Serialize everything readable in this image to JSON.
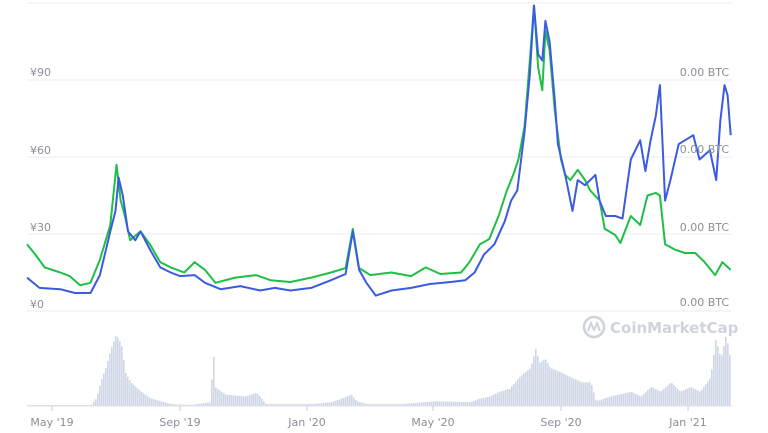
{
  "chart_data": {
    "type": "line",
    "title": "",
    "xlabel": "",
    "ylabel": "",
    "grid": true,
    "legend": "none",
    "watermark": "CoinMarketCap",
    "colors": {
      "price_line": "#3b5be0",
      "btc_line": "#1fbf46",
      "volume": "#cfd6e6",
      "grid": "#eceef2",
      "label": "#8a8f99"
    },
    "y_left": {
      "ylim": [
        0,
        121
      ],
      "ticks": [
        0,
        30,
        60,
        90,
        120
      ],
      "tick_labels": [
        "¥0",
        "¥30",
        "¥60",
        "¥90",
        ""
      ]
    },
    "y_right": {
      "ylim": [
        0,
        121
      ],
      "ticks": [
        0,
        30,
        60,
        90
      ],
      "tick_labels": [
        "0.00 BTC",
        "0.00 BTC",
        "0.00 BTC",
        "0.00 BTC"
      ]
    },
    "x_axis": {
      "range": [
        "2019-04-07",
        "2021-02-11"
      ],
      "ticks": [
        "2019-05-01",
        "2019-09-01",
        "2020-01-01",
        "2020-05-01",
        "2020-09-01",
        "2021-01-01"
      ],
      "tick_labels": [
        "May '19",
        "Sep '19",
        "Jan '20",
        "May '20",
        "Sep '20",
        "Jan '21"
      ]
    },
    "series": [
      {
        "axis": "left",
        "color": "#3b5be0",
        "points": [
          [
            "2019-04-07",
            13
          ],
          [
            "2019-04-19",
            9
          ],
          [
            "2019-05-09",
            8.5
          ],
          [
            "2019-05-23",
            7
          ],
          [
            "2019-06-07",
            7
          ],
          [
            "2019-06-16",
            14
          ],
          [
            "2019-06-26",
            31
          ],
          [
            "2019-07-01",
            39
          ],
          [
            "2019-07-04",
            52
          ],
          [
            "2019-07-08",
            45
          ],
          [
            "2019-07-13",
            31
          ],
          [
            "2019-07-20",
            27.6
          ],
          [
            "2019-07-25",
            31
          ],
          [
            "2019-08-03",
            24
          ],
          [
            "2019-08-13",
            17
          ],
          [
            "2019-08-23",
            15
          ],
          [
            "2019-09-01",
            13.6
          ],
          [
            "2019-09-15",
            14
          ],
          [
            "2019-09-25",
            11
          ],
          [
            "2019-10-10",
            8.5
          ],
          [
            "2019-10-29",
            9.7
          ],
          [
            "2019-11-17",
            8
          ],
          [
            "2019-12-01",
            9
          ],
          [
            "2019-12-16",
            8
          ],
          [
            "2020-01-05",
            9
          ],
          [
            "2020-01-24",
            12
          ],
          [
            "2020-02-07",
            14.4
          ],
          [
            "2020-02-14",
            31
          ],
          [
            "2020-02-20",
            16
          ],
          [
            "2020-02-27",
            11
          ],
          [
            "2020-03-07",
            6
          ],
          [
            "2020-03-22",
            8
          ],
          [
            "2020-04-10",
            9
          ],
          [
            "2020-04-28",
            10.5
          ],
          [
            "2020-05-18",
            11.3
          ],
          [
            "2020-06-01",
            12
          ],
          [
            "2020-06-10",
            15
          ],
          [
            "2020-06-19",
            22
          ],
          [
            "2020-06-29",
            26
          ],
          [
            "2020-07-09",
            35
          ],
          [
            "2020-07-15",
            43
          ],
          [
            "2020-07-21",
            47
          ],
          [
            "2020-07-28",
            70
          ],
          [
            "2020-08-02",
            92
          ],
          [
            "2020-08-06",
            119
          ],
          [
            "2020-08-10",
            100
          ],
          [
            "2020-08-14",
            97.6
          ],
          [
            "2020-08-17",
            113
          ],
          [
            "2020-08-21",
            105
          ],
          [
            "2020-08-26",
            82
          ],
          [
            "2020-08-29",
            65
          ],
          [
            "2020-09-05",
            53
          ],
          [
            "2020-09-12",
            39
          ],
          [
            "2020-09-17",
            51
          ],
          [
            "2020-09-24",
            49
          ],
          [
            "2020-10-04",
            53
          ],
          [
            "2020-10-08",
            43
          ],
          [
            "2020-10-14",
            37
          ],
          [
            "2020-10-23",
            37
          ],
          [
            "2020-10-30",
            36
          ],
          [
            "2020-11-07",
            59
          ],
          [
            "2020-11-16",
            66.5
          ],
          [
            "2020-11-21",
            54.5
          ],
          [
            "2020-11-26",
            66.5
          ],
          [
            "2020-12-01",
            76
          ],
          [
            "2020-12-05",
            88
          ],
          [
            "2020-12-10",
            43
          ],
          [
            "2020-12-15",
            51
          ],
          [
            "2020-12-23",
            65
          ],
          [
            "2020-12-29",
            66.5
          ],
          [
            "2021-01-06",
            68.5
          ],
          [
            "2021-01-12",
            59
          ],
          [
            "2021-01-22",
            62.6
          ],
          [
            "2021-01-28",
            51
          ],
          [
            "2021-02-01",
            74
          ],
          [
            "2021-02-05",
            88
          ],
          [
            "2021-02-08",
            84
          ],
          [
            "2021-02-11",
            68.5
          ]
        ]
      },
      {
        "axis": "right",
        "color": "#1fbf46",
        "points": [
          [
            "2019-04-07",
            26
          ],
          [
            "2019-04-15",
            22
          ],
          [
            "2019-04-24",
            17
          ],
          [
            "2019-05-09",
            15
          ],
          [
            "2019-05-18",
            13.6
          ],
          [
            "2019-05-28",
            10
          ],
          [
            "2019-06-07",
            11
          ],
          [
            "2019-06-16",
            20
          ],
          [
            "2019-06-26",
            33.5
          ],
          [
            "2019-07-02",
            57
          ],
          [
            "2019-07-06",
            43
          ],
          [
            "2019-07-10",
            37
          ],
          [
            "2019-07-15",
            27.6
          ],
          [
            "2019-07-25",
            31
          ],
          [
            "2019-08-03",
            26
          ],
          [
            "2019-08-13",
            19
          ],
          [
            "2019-08-23",
            17
          ],
          [
            "2019-09-05",
            15
          ],
          [
            "2019-09-15",
            19
          ],
          [
            "2019-09-25",
            16
          ],
          [
            "2019-10-05",
            11
          ],
          [
            "2019-10-24",
            13
          ],
          [
            "2019-11-13",
            14
          ],
          [
            "2019-11-27",
            12
          ],
          [
            "2019-12-16",
            11.3
          ],
          [
            "2020-01-05",
            13
          ],
          [
            "2020-01-24",
            15
          ],
          [
            "2020-02-07",
            16.7
          ],
          [
            "2020-02-14",
            32
          ],
          [
            "2020-02-20",
            16.7
          ],
          [
            "2020-03-02",
            14
          ],
          [
            "2020-03-22",
            15
          ],
          [
            "2020-04-10",
            13.6
          ],
          [
            "2020-04-24",
            17
          ],
          [
            "2020-05-08",
            14.4
          ],
          [
            "2020-05-28",
            15
          ],
          [
            "2020-06-05",
            19
          ],
          [
            "2020-06-15",
            26
          ],
          [
            "2020-06-24",
            28
          ],
          [
            "2020-07-03",
            37
          ],
          [
            "2020-07-11",
            47
          ],
          [
            "2020-07-17",
            53
          ],
          [
            "2020-07-22",
            59
          ],
          [
            "2020-07-28",
            72
          ],
          [
            "2020-08-02",
            97.6
          ],
          [
            "2020-08-06",
            119
          ],
          [
            "2020-08-10",
            95
          ],
          [
            "2020-08-14",
            86
          ],
          [
            "2020-08-17",
            109
          ],
          [
            "2020-08-21",
            101.6
          ],
          [
            "2020-08-26",
            78
          ],
          [
            "2020-09-01",
            59
          ],
          [
            "2020-09-05",
            53
          ],
          [
            "2020-09-10",
            51
          ],
          [
            "2020-09-17",
            55
          ],
          [
            "2020-09-24",
            51
          ],
          [
            "2020-09-29",
            47
          ],
          [
            "2020-10-08",
            43
          ],
          [
            "2020-10-13",
            32
          ],
          [
            "2020-10-23",
            29.6
          ],
          [
            "2020-10-28",
            26.5
          ],
          [
            "2020-11-07",
            37
          ],
          [
            "2020-11-16",
            33.5
          ],
          [
            "2020-11-23",
            45
          ],
          [
            "2020-12-01",
            46
          ],
          [
            "2020-12-05",
            45
          ],
          [
            "2020-12-10",
            26
          ],
          [
            "2020-12-19",
            24
          ],
          [
            "2020-12-29",
            22.6
          ],
          [
            "2021-01-08",
            22.6
          ],
          [
            "2021-01-17",
            19
          ],
          [
            "2021-01-27",
            14
          ],
          [
            "2021-02-03",
            19
          ],
          [
            "2021-02-11",
            16
          ]
        ]
      }
    ],
    "volume": {
      "type": "bar",
      "relative": true,
      "points": [
        [
          "2019-04-07",
          1
        ],
        [
          "2019-06-07",
          1
        ],
        [
          "2019-06-12",
          8
        ],
        [
          "2019-06-16",
          25
        ],
        [
          "2019-06-21",
          40
        ],
        [
          "2019-06-26",
          60
        ],
        [
          "2019-07-01",
          75
        ],
        [
          "2019-07-06",
          65
        ],
        [
          "2019-07-10",
          35
        ],
        [
          "2019-07-15",
          25
        ],
        [
          "2019-07-25",
          15
        ],
        [
          "2019-08-03",
          8
        ],
        [
          "2019-08-13",
          5
        ],
        [
          "2019-08-23",
          2
        ],
        [
          "2019-09-10",
          1
        ],
        [
          "2019-09-30",
          4
        ],
        [
          "2019-10-02",
          68
        ],
        [
          "2019-10-04",
          20
        ],
        [
          "2019-10-14",
          12
        ],
        [
          "2019-11-02",
          10
        ],
        [
          "2019-11-13",
          14
        ],
        [
          "2019-11-22",
          2
        ],
        [
          "2019-12-16",
          2
        ],
        [
          "2020-01-05",
          2
        ],
        [
          "2020-01-24",
          4
        ],
        [
          "2020-02-03",
          8
        ],
        [
          "2020-02-12",
          12
        ],
        [
          "2020-02-17",
          5
        ],
        [
          "2020-02-27",
          2
        ],
        [
          "2020-03-31",
          2
        ],
        [
          "2020-05-03",
          5
        ],
        [
          "2020-06-05",
          4
        ],
        [
          "2020-06-15",
          8
        ],
        [
          "2020-06-24",
          10
        ],
        [
          "2020-07-03",
          15
        ],
        [
          "2020-07-13",
          18
        ],
        [
          "2020-07-22",
          30
        ],
        [
          "2020-08-02",
          40
        ],
        [
          "2020-08-07",
          60
        ],
        [
          "2020-08-11",
          45
        ],
        [
          "2020-08-16",
          50
        ],
        [
          "2020-08-21",
          40
        ],
        [
          "2020-09-01",
          35
        ],
        [
          "2020-09-10",
          30
        ],
        [
          "2020-09-20",
          25
        ],
        [
          "2020-09-29",
          25
        ],
        [
          "2020-10-04",
          5
        ],
        [
          "2020-10-18",
          10
        ],
        [
          "2020-11-07",
          15
        ],
        [
          "2020-11-16",
          10
        ],
        [
          "2020-11-26",
          20
        ],
        [
          "2020-12-05",
          15
        ],
        [
          "2020-12-15",
          25
        ],
        [
          "2020-12-24",
          15
        ],
        [
          "2021-01-03",
          20
        ],
        [
          "2021-01-12",
          15
        ],
        [
          "2021-01-22",
          30
        ],
        [
          "2021-01-27",
          70
        ],
        [
          "2021-02-01",
          50
        ],
        [
          "2021-02-06",
          75
        ],
        [
          "2021-02-10",
          50
        ]
      ]
    }
  }
}
